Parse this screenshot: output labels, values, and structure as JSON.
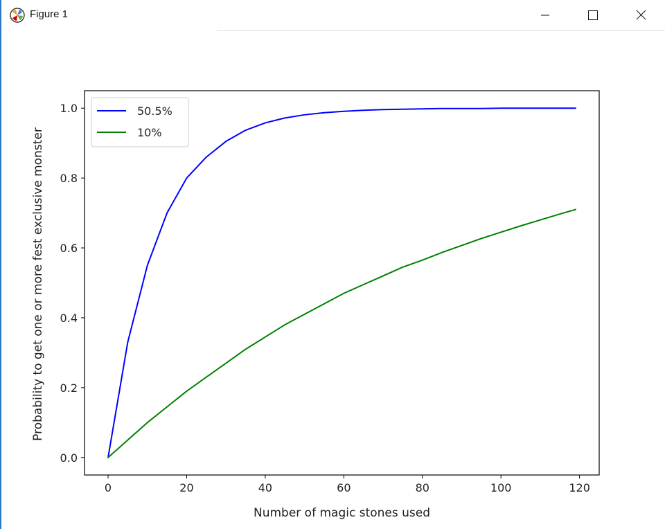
{
  "window": {
    "title": "Figure 1",
    "icon": "matplotlib-icon",
    "controls": [
      "minimize-icon",
      "maximize-icon",
      "close-icon"
    ]
  },
  "chart_data": {
    "type": "line",
    "title": "",
    "xlabel": "Number of magic stones used",
    "ylabel": "Probability to get one or more fest exclusive monster",
    "xlim": [
      -6,
      125
    ],
    "ylim": [
      -0.05,
      1.05
    ],
    "xticks": [
      0,
      20,
      40,
      60,
      80,
      100,
      120
    ],
    "yticks": [
      0.0,
      0.2,
      0.4,
      0.6,
      0.8,
      1.0
    ],
    "xtick_labels": [
      "0",
      "20",
      "40",
      "60",
      "80",
      "100",
      "120"
    ],
    "ytick_labels": [
      "0.0",
      "0.2",
      "0.4",
      "0.6",
      "0.8",
      "1.0"
    ],
    "grid": false,
    "legend_position": "top-left",
    "x": [
      0,
      5,
      10,
      15,
      20,
      25,
      30,
      35,
      40,
      45,
      50,
      55,
      60,
      65,
      70,
      75,
      80,
      85,
      90,
      95,
      100,
      105,
      110,
      115,
      119
    ],
    "series": [
      {
        "name": "50.5%",
        "color": "#0000ff",
        "values": [
          0.0,
          0.33,
          0.55,
          0.7,
          0.8,
          0.86,
          0.905,
          0.937,
          0.958,
          0.972,
          0.981,
          0.987,
          0.991,
          0.994,
          0.996,
          0.997,
          0.998,
          0.999,
          0.999,
          0.999,
          1.0,
          1.0,
          1.0,
          1.0,
          1.0
        ]
      },
      {
        "name": "10%",
        "color": "#008000",
        "values": [
          0.0,
          0.05,
          0.1,
          0.145,
          0.19,
          0.23,
          0.27,
          0.31,
          0.345,
          0.38,
          0.41,
          0.44,
          0.47,
          0.495,
          0.52,
          0.545,
          0.565,
          0.587,
          0.607,
          0.627,
          0.645,
          0.663,
          0.68,
          0.697,
          0.71
        ]
      }
    ]
  }
}
